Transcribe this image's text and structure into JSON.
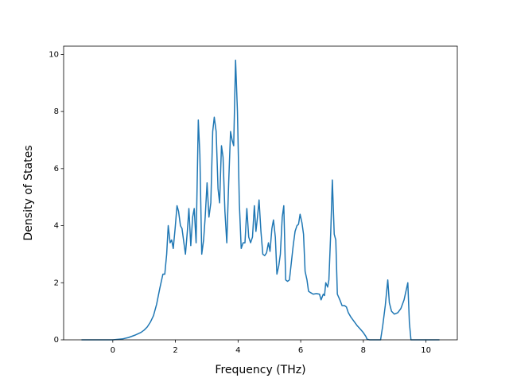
{
  "chart_data": {
    "type": "line",
    "x_label": "Frequency (THz)",
    "y_label": "Density of States",
    "x": [
      -1.0,
      -0.5,
      0,
      0.3,
      0.5,
      0.7,
      0.9,
      1.0,
      1.1,
      1.2,
      1.3,
      1.4,
      1.5,
      1.6,
      1.66,
      1.72,
      1.77,
      1.83,
      1.88,
      1.93,
      1.99,
      2.05,
      2.1,
      2.16,
      2.21,
      2.27,
      2.32,
      2.38,
      2.43,
      2.49,
      2.55,
      2.6,
      2.66,
      2.73,
      2.78,
      2.84,
      2.9,
      2.95,
      3.01,
      3.07,
      3.13,
      3.19,
      3.24,
      3.3,
      3.36,
      3.41,
      3.47,
      3.52,
      3.58,
      3.64,
      3.7,
      3.76,
      3.81,
      3.86,
      3.92,
      3.98,
      4.04,
      4.1,
      4.16,
      4.22,
      4.28,
      4.34,
      4.4,
      4.46,
      4.52,
      4.57,
      4.62,
      4.67,
      4.73,
      4.79,
      4.85,
      4.91,
      4.97,
      5.02,
      5.08,
      5.13,
      5.19,
      5.24,
      5.3,
      5.35,
      5.41,
      5.46,
      5.52,
      5.58,
      5.64,
      5.7,
      5.76,
      5.82,
      5.88,
      5.93,
      5.98,
      6.04,
      6.09,
      6.14,
      6.2,
      6.25,
      6.32,
      6.4,
      6.5,
      6.6,
      6.65,
      6.72,
      6.76,
      6.8,
      6.86,
      6.9,
      6.96,
      7.01,
      7.07,
      7.12,
      7.17,
      7.25,
      7.32,
      7.4,
      7.46,
      7.52,
      7.6,
      7.7,
      7.8,
      7.9,
      8.0,
      8.08,
      8.12,
      8.2,
      8.4,
      8.55,
      8.62,
      8.7,
      8.78,
      8.83,
      8.9,
      8.99,
      9.1,
      9.2,
      9.3,
      9.36,
      9.42,
      9.47,
      9.52,
      9.8,
      10.43
    ],
    "series": [
      {
        "name": "DOS",
        "color": "#1f77b4",
        "values": [
          0,
          0,
          0,
          0.03,
          0.08,
          0.16,
          0.26,
          0.34,
          0.45,
          0.62,
          0.85,
          1.25,
          1.8,
          2.3,
          2.3,
          3.0,
          4.0,
          3.4,
          3.5,
          3.2,
          3.9,
          4.7,
          4.5,
          4.0,
          3.9,
          3.4,
          3.0,
          3.8,
          4.6,
          3.3,
          4.3,
          4.6,
          3.4,
          7.7,
          6.5,
          3.0,
          3.5,
          4.3,
          5.5,
          4.3,
          4.8,
          7.3,
          7.8,
          7.3,
          5.3,
          4.8,
          6.8,
          6.4,
          4.5,
          3.4,
          5.5,
          7.3,
          7.0,
          6.8,
          9.8,
          8.0,
          4.8,
          3.2,
          3.4,
          3.4,
          4.6,
          3.6,
          3.4,
          3.6,
          4.7,
          3.8,
          4.3,
          4.9,
          3.8,
          3.0,
          2.95,
          3.05,
          3.4,
          3.1,
          3.9,
          4.2,
          3.6,
          2.3,
          2.6,
          3.0,
          4.3,
          4.7,
          2.1,
          2.05,
          2.1,
          2.7,
          3.3,
          3.8,
          4.0,
          4.05,
          4.4,
          4.1,
          3.7,
          2.4,
          2.1,
          1.7,
          1.65,
          1.6,
          1.62,
          1.6,
          1.4,
          1.6,
          1.55,
          2.0,
          1.85,
          2.1,
          3.8,
          5.6,
          3.7,
          3.5,
          1.6,
          1.4,
          1.2,
          1.2,
          1.15,
          0.95,
          0.8,
          0.65,
          0.5,
          0.38,
          0.25,
          0.12,
          0.02,
          0,
          0,
          0,
          0.5,
          1.2,
          2.1,
          1.3,
          1.0,
          0.9,
          0.95,
          1.1,
          1.4,
          1.7,
          2.0,
          0.6,
          0,
          0,
          0
        ]
      }
    ],
    "xlim": [
      -1.57,
      11.0
    ],
    "ylim": [
      0,
      10.29
    ],
    "xticks": [
      0,
      2,
      4,
      6,
      8,
      10
    ],
    "yticks": [
      0,
      2,
      4,
      6,
      8,
      10
    ]
  }
}
